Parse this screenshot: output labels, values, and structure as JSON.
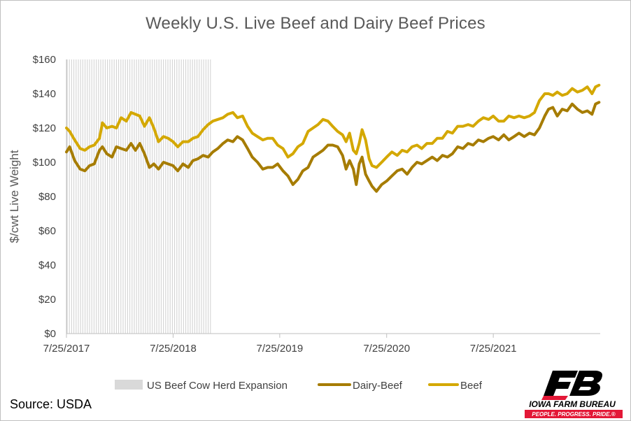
{
  "chart_data": {
    "type": "line",
    "title": "Weekly U.S. Live Beef and Dairy Beef Prices",
    "ylabel": "$/cwt Live Weight",
    "xlabel": "",
    "ylim": [
      0,
      160
    ],
    "yticks": [
      "$0",
      "$20",
      "$40",
      "$60",
      "$80",
      "$100",
      "$120",
      "$140",
      "$160"
    ],
    "x_tick_labels": [
      "7/25/2017",
      "7/25/2018",
      "7/25/2019",
      "7/25/2020",
      "7/25/2021"
    ],
    "x_tick_dates": [
      "2017-07-25",
      "2018-07-25",
      "2019-07-25",
      "2020-07-25",
      "2021-07-25"
    ],
    "x_range": [
      "2017-07-25",
      "2022-07-26"
    ],
    "shaded_region": {
      "label": "US Beef Cow Herd Expansion",
      "start": "2017-07-25",
      "end": "2018-12-01"
    },
    "legend_position": "bottom",
    "grid": false,
    "series": [
      {
        "name": "Dairy-Beef",
        "color": "#a67c00",
        "points": [
          [
            "2017-07-25",
            106
          ],
          [
            "2017-08-05",
            109
          ],
          [
            "2017-08-22",
            101
          ],
          [
            "2017-09-10",
            96
          ],
          [
            "2017-09-26",
            95
          ],
          [
            "2017-10-12",
            98
          ],
          [
            "2017-10-28",
            99
          ],
          [
            "2017-11-15",
            107
          ],
          [
            "2017-11-25",
            109
          ],
          [
            "2017-12-10",
            105
          ],
          [
            "2017-12-28",
            103
          ],
          [
            "2018-01-12",
            109
          ],
          [
            "2018-01-28",
            108
          ],
          [
            "2018-02-15",
            107
          ],
          [
            "2018-03-03",
            111
          ],
          [
            "2018-03-18",
            107
          ],
          [
            "2018-04-02",
            111
          ],
          [
            "2018-04-18",
            105
          ],
          [
            "2018-05-05",
            97
          ],
          [
            "2018-05-20",
            99
          ],
          [
            "2018-06-05",
            96
          ],
          [
            "2018-06-22",
            100
          ],
          [
            "2018-07-08",
            99
          ],
          [
            "2018-07-25",
            98
          ],
          [
            "2018-08-10",
            95
          ],
          [
            "2018-08-28",
            99
          ],
          [
            "2018-09-15",
            97
          ],
          [
            "2018-10-01",
            101
          ],
          [
            "2018-10-18",
            102
          ],
          [
            "2018-11-05",
            104
          ],
          [
            "2018-11-22",
            103
          ],
          [
            "2018-12-08",
            106
          ],
          [
            "2018-12-25",
            108
          ],
          [
            "2019-01-12",
            111
          ],
          [
            "2019-01-28",
            113
          ],
          [
            "2019-02-15",
            112
          ],
          [
            "2019-03-02",
            115
          ],
          [
            "2019-03-20",
            113
          ],
          [
            "2019-04-06",
            108
          ],
          [
            "2019-04-22",
            103
          ],
          [
            "2019-05-10",
            100
          ],
          [
            "2019-05-28",
            96
          ],
          [
            "2019-06-14",
            97
          ],
          [
            "2019-07-01",
            97
          ],
          [
            "2019-07-18",
            99
          ],
          [
            "2019-08-05",
            95
          ],
          [
            "2019-08-22",
            92
          ],
          [
            "2019-09-08",
            87
          ],
          [
            "2019-09-25",
            90
          ],
          [
            "2019-10-12",
            95
          ],
          [
            "2019-10-30",
            97
          ],
          [
            "2019-11-16",
            103
          ],
          [
            "2019-12-03",
            105
          ],
          [
            "2019-12-20",
            107
          ],
          [
            "2020-01-06",
            110
          ],
          [
            "2020-01-22",
            110
          ],
          [
            "2020-02-08",
            109
          ],
          [
            "2020-02-25",
            104
          ],
          [
            "2020-03-08",
            96
          ],
          [
            "2020-03-20",
            101
          ],
          [
            "2020-04-02",
            96
          ],
          [
            "2020-04-12",
            87
          ],
          [
            "2020-04-22",
            99
          ],
          [
            "2020-05-02",
            103
          ],
          [
            "2020-05-14",
            93
          ],
          [
            "2020-05-26",
            89
          ],
          [
            "2020-06-05",
            86
          ],
          [
            "2020-06-20",
            83
          ],
          [
            "2020-07-08",
            87
          ],
          [
            "2020-07-25",
            89
          ],
          [
            "2020-08-12",
            92
          ],
          [
            "2020-08-30",
            95
          ],
          [
            "2020-09-16",
            96
          ],
          [
            "2020-10-03",
            93
          ],
          [
            "2020-10-20",
            97
          ],
          [
            "2020-11-06",
            100
          ],
          [
            "2020-11-22",
            99
          ],
          [
            "2020-12-10",
            101
          ],
          [
            "2020-12-28",
            103
          ],
          [
            "2021-01-14",
            101
          ],
          [
            "2021-02-01",
            104
          ],
          [
            "2021-02-18",
            103
          ],
          [
            "2021-03-07",
            105
          ],
          [
            "2021-03-25",
            109
          ],
          [
            "2021-04-12",
            108
          ],
          [
            "2021-04-30",
            111
          ],
          [
            "2021-05-17",
            110
          ],
          [
            "2021-06-04",
            113
          ],
          [
            "2021-06-21",
            112
          ],
          [
            "2021-07-09",
            114
          ],
          [
            "2021-07-25",
            115
          ],
          [
            "2021-08-12",
            113
          ],
          [
            "2021-08-30",
            116
          ],
          [
            "2021-09-16",
            113
          ],
          [
            "2021-10-04",
            115
          ],
          [
            "2021-10-21",
            117
          ],
          [
            "2021-11-08",
            115
          ],
          [
            "2021-11-26",
            117
          ],
          [
            "2021-12-13",
            116
          ],
          [
            "2021-12-30",
            120
          ],
          [
            "2022-01-17",
            127
          ],
          [
            "2022-01-30",
            131
          ],
          [
            "2022-02-14",
            132
          ],
          [
            "2022-03-01",
            127
          ],
          [
            "2022-03-18",
            131
          ],
          [
            "2022-04-04",
            130
          ],
          [
            "2022-04-21",
            134
          ],
          [
            "2022-05-09",
            131
          ],
          [
            "2022-05-26",
            129
          ],
          [
            "2022-06-12",
            130
          ],
          [
            "2022-06-28",
            128
          ],
          [
            "2022-07-10",
            134
          ],
          [
            "2022-07-22",
            135
          ]
        ]
      },
      {
        "name": "Beef",
        "color": "#d4a800",
        "points": [
          [
            "2017-07-25",
            120
          ],
          [
            "2017-08-05",
            118
          ],
          [
            "2017-08-22",
            113
          ],
          [
            "2017-09-10",
            108
          ],
          [
            "2017-09-26",
            107
          ],
          [
            "2017-10-12",
            109
          ],
          [
            "2017-10-28",
            110
          ],
          [
            "2017-11-15",
            114
          ],
          [
            "2017-11-25",
            123
          ],
          [
            "2017-12-10",
            120
          ],
          [
            "2017-12-28",
            121
          ],
          [
            "2018-01-12",
            120
          ],
          [
            "2018-01-28",
            126
          ],
          [
            "2018-02-15",
            124
          ],
          [
            "2018-03-03",
            129
          ],
          [
            "2018-03-18",
            128
          ],
          [
            "2018-04-02",
            127
          ],
          [
            "2018-04-18",
            121
          ],
          [
            "2018-05-05",
            126
          ],
          [
            "2018-05-20",
            120
          ],
          [
            "2018-06-05",
            112
          ],
          [
            "2018-06-22",
            115
          ],
          [
            "2018-07-08",
            114
          ],
          [
            "2018-07-25",
            112
          ],
          [
            "2018-08-10",
            109
          ],
          [
            "2018-08-28",
            112
          ],
          [
            "2018-09-15",
            112
          ],
          [
            "2018-10-01",
            114
          ],
          [
            "2018-10-18",
            115
          ],
          [
            "2018-11-05",
            119
          ],
          [
            "2018-11-22",
            122
          ],
          [
            "2018-12-08",
            124
          ],
          [
            "2018-12-25",
            125
          ],
          [
            "2019-01-12",
            126
          ],
          [
            "2019-01-28",
            128
          ],
          [
            "2019-02-15",
            129
          ],
          [
            "2019-03-02",
            126
          ],
          [
            "2019-03-20",
            127
          ],
          [
            "2019-04-06",
            121
          ],
          [
            "2019-04-22",
            117
          ],
          [
            "2019-05-10",
            115
          ],
          [
            "2019-05-28",
            113
          ],
          [
            "2019-06-14",
            114
          ],
          [
            "2019-07-01",
            114
          ],
          [
            "2019-07-18",
            110
          ],
          [
            "2019-08-05",
            108
          ],
          [
            "2019-08-22",
            103
          ],
          [
            "2019-09-08",
            105
          ],
          [
            "2019-09-25",
            109
          ],
          [
            "2019-10-12",
            111
          ],
          [
            "2019-10-30",
            118
          ],
          [
            "2019-11-16",
            120
          ],
          [
            "2019-12-03",
            122
          ],
          [
            "2019-12-20",
            125
          ],
          [
            "2020-01-06",
            124
          ],
          [
            "2020-01-22",
            121
          ],
          [
            "2020-02-08",
            118
          ],
          [
            "2020-02-25",
            116
          ],
          [
            "2020-03-08",
            112
          ],
          [
            "2020-03-20",
            117
          ],
          [
            "2020-04-02",
            107
          ],
          [
            "2020-04-12",
            105
          ],
          [
            "2020-04-22",
            111
          ],
          [
            "2020-05-02",
            119
          ],
          [
            "2020-05-14",
            113
          ],
          [
            "2020-05-26",
            102
          ],
          [
            "2020-06-05",
            98
          ],
          [
            "2020-06-20",
            97
          ],
          [
            "2020-07-08",
            100
          ],
          [
            "2020-07-25",
            103
          ],
          [
            "2020-08-12",
            106
          ],
          [
            "2020-08-30",
            104
          ],
          [
            "2020-09-16",
            107
          ],
          [
            "2020-10-03",
            106
          ],
          [
            "2020-10-20",
            109
          ],
          [
            "2020-11-06",
            110
          ],
          [
            "2020-11-22",
            108
          ],
          [
            "2020-12-10",
            111
          ],
          [
            "2020-12-28",
            111
          ],
          [
            "2021-01-14",
            114
          ],
          [
            "2021-02-01",
            114
          ],
          [
            "2021-02-18",
            118
          ],
          [
            "2021-03-07",
            117
          ],
          [
            "2021-03-25",
            121
          ],
          [
            "2021-04-12",
            121
          ],
          [
            "2021-04-30",
            122
          ],
          [
            "2021-05-17",
            121
          ],
          [
            "2021-06-04",
            124
          ],
          [
            "2021-06-21",
            126
          ],
          [
            "2021-07-09",
            125
          ],
          [
            "2021-07-25",
            127
          ],
          [
            "2021-08-12",
            124
          ],
          [
            "2021-08-30",
            124
          ],
          [
            "2021-09-16",
            127
          ],
          [
            "2021-10-04",
            126
          ],
          [
            "2021-10-21",
            127
          ],
          [
            "2021-11-08",
            126
          ],
          [
            "2021-11-26",
            127
          ],
          [
            "2021-12-13",
            129
          ],
          [
            "2021-12-30",
            136
          ],
          [
            "2022-01-17",
            140
          ],
          [
            "2022-01-30",
            140
          ],
          [
            "2022-02-14",
            139
          ],
          [
            "2022-03-01",
            141
          ],
          [
            "2022-03-18",
            139
          ],
          [
            "2022-04-04",
            140
          ],
          [
            "2022-04-21",
            143
          ],
          [
            "2022-05-09",
            141
          ],
          [
            "2022-05-26",
            142
          ],
          [
            "2022-06-12",
            144
          ],
          [
            "2022-06-28",
            140
          ],
          [
            "2022-07-10",
            144
          ],
          [
            "2022-07-22",
            145
          ]
        ]
      }
    ]
  },
  "legend": {
    "items": [
      {
        "label": "US Beef Cow Herd Expansion",
        "color": "#d9d9d9"
      },
      {
        "label": "Dairy-Beef",
        "color": "#a67c00"
      },
      {
        "label": "Beef",
        "color": "#d4a800"
      }
    ]
  },
  "source": "Source: USDA",
  "logo": {
    "mark": "FB",
    "name": "IOWA FARM BUREAU",
    "tagline": "PEOPLE. PROGRESS. PRIDE.®",
    "colors": {
      "dark": "#000000",
      "red": "#e31837"
    }
  }
}
